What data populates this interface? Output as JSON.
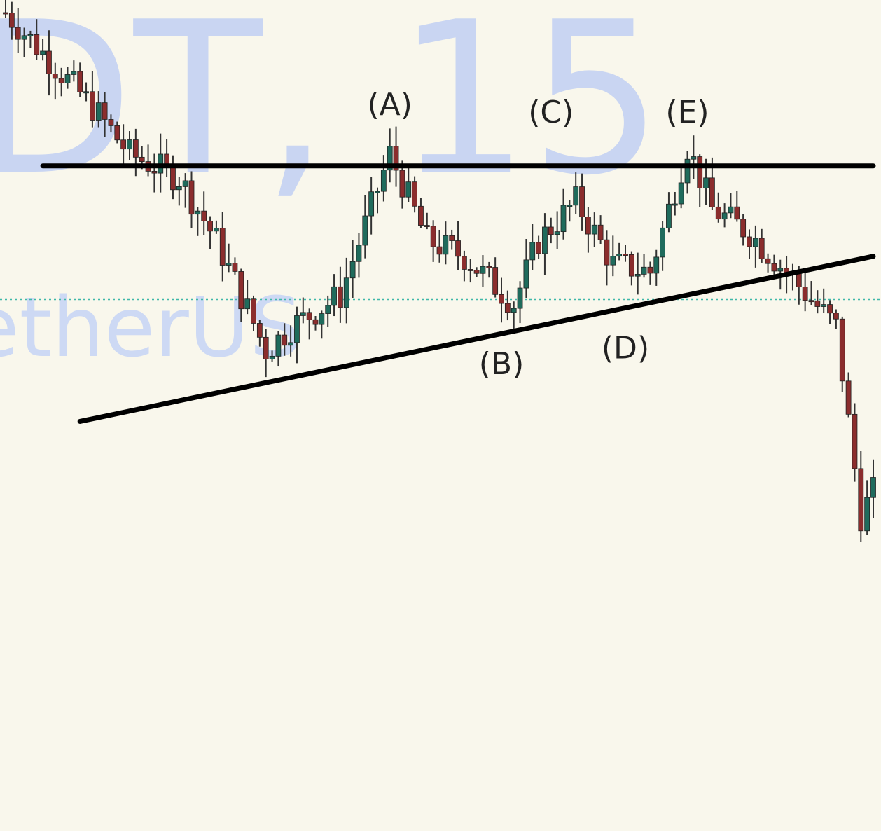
{
  "watermark": {
    "symbol_text": "DT, 15",
    "name_text": "etherUS"
  },
  "colors": {
    "background": "#f9f7ec",
    "up_candle": "#1f6b5c",
    "down_candle": "#8b2d2d",
    "wick": "#333333",
    "trendline": "#000000",
    "price_line": "#3fb8a8",
    "watermark": "#c9d5f2"
  },
  "chart_data": {
    "type": "candlestick",
    "title": "",
    "xlabel": "",
    "ylabel": "",
    "timeframe": "15",
    "ylim": [
      0,
      100
    ],
    "bar_count": 70,
    "close_path": [
      {
        "bar": 0,
        "price": 100
      },
      {
        "bar": 7,
        "price": 88
      },
      {
        "bar": 10,
        "price": 82
      },
      {
        "bar": 14,
        "price": 79
      },
      {
        "bar": 17,
        "price": 71
      },
      {
        "bar": 21,
        "price": 57
      },
      {
        "bar": 23,
        "price": 60
      },
      {
        "bar": 27,
        "price": 64
      },
      {
        "bar": 31,
        "price": 82
      },
      {
        "bar": 34,
        "price": 71
      },
      {
        "bar": 37,
        "price": 69
      },
      {
        "bar": 41,
        "price": 63
      },
      {
        "bar": 43,
        "price": 71
      },
      {
        "bar": 46,
        "price": 76
      },
      {
        "bar": 49,
        "price": 68
      },
      {
        "bar": 52,
        "price": 67
      },
      {
        "bar": 55,
        "price": 83
      },
      {
        "bar": 57,
        "price": 75
      },
      {
        "bar": 60,
        "price": 72
      },
      {
        "bar": 63,
        "price": 67
      },
      {
        "bar": 67,
        "price": 60
      },
      {
        "bar": 69,
        "price": 36
      },
      {
        "bar": 70,
        "price": 39
      }
    ],
    "reference_price_line": 63.5,
    "trendlines": [
      {
        "name": "resistance",
        "start": {
          "bar": 3,
          "price": 80.5
        },
        "end": {
          "bar": 70,
          "price": 80.5
        }
      },
      {
        "name": "support",
        "start": {
          "bar": 6,
          "price": 48
        },
        "end": {
          "bar": 70,
          "price": 69
        }
      }
    ],
    "annotations": [
      {
        "text": "(A)",
        "bar": 31,
        "price": 87
      },
      {
        "text": "(B)",
        "bar": 40,
        "price": 54
      },
      {
        "text": "(C)",
        "bar": 44,
        "price": 86
      },
      {
        "text": "(D)",
        "bar": 50,
        "price": 56
      },
      {
        "text": "(E)",
        "bar": 55,
        "price": 86
      }
    ]
  }
}
